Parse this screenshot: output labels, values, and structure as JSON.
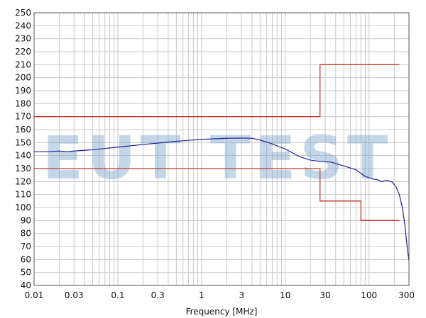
{
  "chart_data": {
    "type": "line",
    "title": "",
    "xlabel": "Frequency [MHz]",
    "ylabel": "",
    "x_scale": "log",
    "xlim": [
      0.01,
      300
    ],
    "ylim": [
      40,
      250
    ],
    "grid": true,
    "x_ticks": [
      "0.01",
      "0.03",
      "0.1",
      "0.3",
      "1",
      "3",
      "10",
      "30",
      "100",
      "300"
    ],
    "y_ticks": [
      "40",
      "50",
      "60",
      "70",
      "80",
      "90",
      "100",
      "110",
      "120",
      "130",
      "140",
      "150",
      "160",
      "170",
      "180",
      "190",
      "200",
      "210",
      "220",
      "230",
      "240",
      "250"
    ],
    "watermark": "EUT TEST",
    "colors": {
      "limit": "#c0392b",
      "measurement": "#1f1f99",
      "grid": "#c8c8c8"
    },
    "series": [
      {
        "kind": "limit",
        "points": [
          [
            0.01,
            170
          ],
          [
            26,
            170
          ],
          [
            26,
            210
          ],
          [
            230,
            210
          ]
        ]
      },
      {
        "kind": "limit",
        "points": [
          [
            0.01,
            130
          ],
          [
            26,
            130
          ],
          [
            26,
            105
          ],
          [
            80,
            105
          ],
          [
            80,
            90
          ],
          [
            230,
            90
          ]
        ]
      },
      {
        "kind": "measurement",
        "points": [
          [
            0.01,
            143
          ],
          [
            0.015,
            143
          ],
          [
            0.02,
            143.5
          ],
          [
            0.025,
            143
          ],
          [
            0.03,
            143.5
          ],
          [
            0.05,
            144.5
          ],
          [
            0.1,
            146.5
          ],
          [
            0.2,
            148.5
          ],
          [
            0.5,
            151
          ],
          [
            1,
            152.5
          ],
          [
            2,
            153.3
          ],
          [
            3,
            153.5
          ],
          [
            4,
            153.3
          ],
          [
            5,
            152
          ],
          [
            7,
            149
          ],
          [
            10,
            145
          ],
          [
            15,
            139
          ],
          [
            20,
            136.5
          ],
          [
            26,
            135.5
          ],
          [
            35,
            135
          ],
          [
            50,
            132
          ],
          [
            70,
            129
          ],
          [
            90,
            124
          ],
          [
            110,
            122
          ],
          [
            125,
            121.5
          ],
          [
            140,
            120
          ],
          [
            165,
            121
          ],
          [
            190,
            119.5
          ],
          [
            210,
            116
          ],
          [
            230,
            110
          ],
          [
            250,
            100
          ],
          [
            270,
            85
          ],
          [
            285,
            70
          ],
          [
            300,
            59
          ]
        ]
      }
    ]
  }
}
